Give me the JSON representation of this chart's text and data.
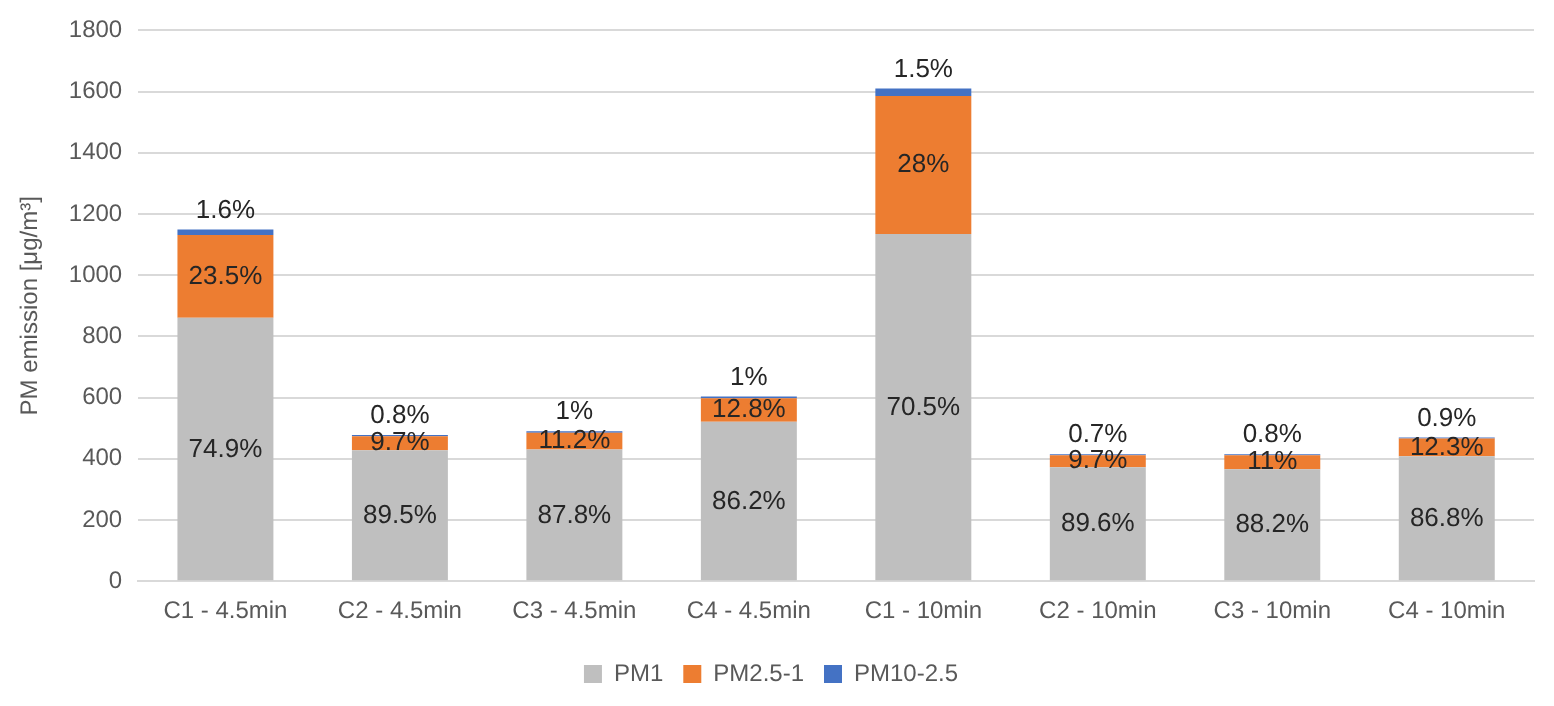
{
  "chart_data": {
    "type": "bar",
    "stacked": true,
    "ylabel": "PM emission [μg/m³]",
    "categories": [
      "C1 - 4.5min",
      "C2 - 4.5min",
      "C3 - 4.5min",
      "C4 - 4.5min",
      "C1 - 10min",
      "C2 - 10min",
      "C3 - 10min",
      "C4 - 10min"
    ],
    "series": [
      {
        "name": "PM1",
        "color": "#bfbfbf",
        "values": [
          861,
          428,
          430,
          521,
          1135,
          372,
          366,
          408
        ]
      },
      {
        "name": "PM2.5-1",
        "color": "#ed7d31",
        "values": [
          270,
          46,
          55,
          77,
          451,
          40,
          46,
          58
        ]
      },
      {
        "name": "PM10-2.5",
        "color": "#4472c4",
        "values": [
          18,
          4,
          5,
          6,
          24,
          3,
          3,
          4
        ]
      }
    ],
    "annotations": [
      "74.9%",
      {
        "text": "23.5%",
        "x": "C1 - 4.5min",
        "y": 1131
      },
      {
        "text": "1.6%",
        "x": "C1 - 4.5min",
        "y": 1149
      },
      {
        "text": "89.5%",
        "x": "C2 - 4.5min",
        "y": 428
      },
      {
        "text": "9.7%",
        "x": "C2 - 4.5min",
        "y": 474
      },
      {
        "text": "0.8%",
        "x": "C2 - 4.5min",
        "y": 478
      },
      {
        "text": "87.8%",
        "x": "C3 - 4.5min",
        "y": 430
      },
      {
        "text": "11.2%",
        "x": "C3 - 4.5min",
        "y": 485
      },
      {
        "text": "1%",
        "x": "C3 - 4.5min",
        "y": 490
      },
      {
        "text": "86.2%",
        "x": "C4 - 4.5min",
        "y": 521
      },
      {
        "text": "12.8%",
        "x": "C4 - 4.5min",
        "y": 598
      },
      {
        "text": "1%",
        "x": "C4 - 4.5min",
        "y": 604
      },
      "70.5%",
      {
        "text": "28%",
        "x": "C1 - 10min",
        "y": 1586
      },
      {
        "text": "1.5%",
        "x": "C1 - 10min",
        "y": 1610
      },
      {
        "text": "89.6%",
        "x": "C2 - 10min",
        "y": 372
      },
      {
        "text": "9.7%",
        "x": "C2 - 10min",
        "y": 412
      },
      {
        "text": "0.7%",
        "x": "C2 - 10min",
        "y": 415
      },
      {
        "text": "88.2%",
        "x": "C3 - 10min",
        "y": 366
      },
      {
        "text": "11%",
        "x": "C3 - 10min",
        "y": 412
      },
      {
        "text": "0.8%",
        "x": "C3 - 10min",
        "y": 415
      },
      {
        "text": "86.8%",
        "x": "C4 - 10min",
        "y": 408
      },
      {
        "text": "12.3%",
        "x": "C4 - 10min",
        "y": 466
      },
      {
        "text": "0.9%",
        "x": "C4 - 10min",
        "y": 470
      }
    ],
    "ylim": [
      0,
      1800
    ],
    "yticks": [
      0,
      200,
      400,
      600,
      800,
      1000,
      1200,
      1400,
      1600,
      1800
    ],
    "grid": "y",
    "legend": "bottom"
  }
}
